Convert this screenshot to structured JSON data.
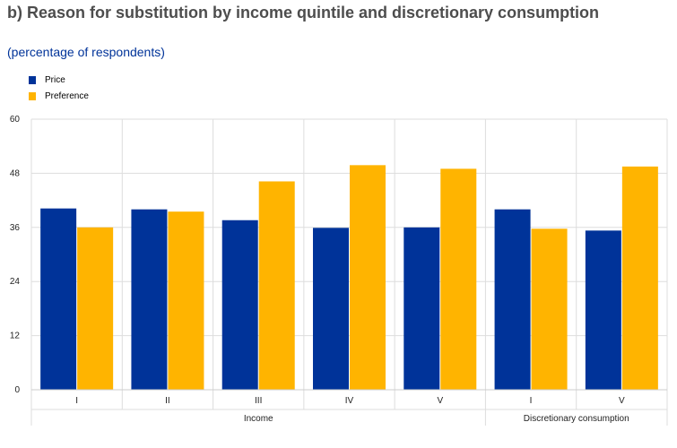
{
  "header": {
    "title": "b) Reason for substitution by income quintile and discretionary consumption",
    "subtitle": "(percentage of respondents)"
  },
  "chart_data": {
    "type": "bar",
    "categories": [
      "I",
      "II",
      "III",
      "IV",
      "V",
      "I",
      "V"
    ],
    "groups": [
      {
        "label": "Income",
        "categories": [
          "I",
          "II",
          "III",
          "IV",
          "V"
        ]
      },
      {
        "label": "Discretionary consumption",
        "categories": [
          "I",
          "V"
        ]
      }
    ],
    "series": [
      {
        "name": "Price",
        "color": "#003399",
        "values": [
          40.2,
          40.0,
          37.6,
          35.9,
          36.0,
          40.0,
          35.3
        ]
      },
      {
        "name": "Preference",
        "color": "#ffb400",
        "values": [
          36.0,
          39.5,
          46.2,
          49.8,
          49.0,
          35.7,
          49.5
        ]
      }
    ],
    "yticks": [
      0,
      12,
      24,
      36,
      48,
      60
    ],
    "ylim": [
      0,
      60
    ],
    "grid": true,
    "legend": "top-left"
  }
}
